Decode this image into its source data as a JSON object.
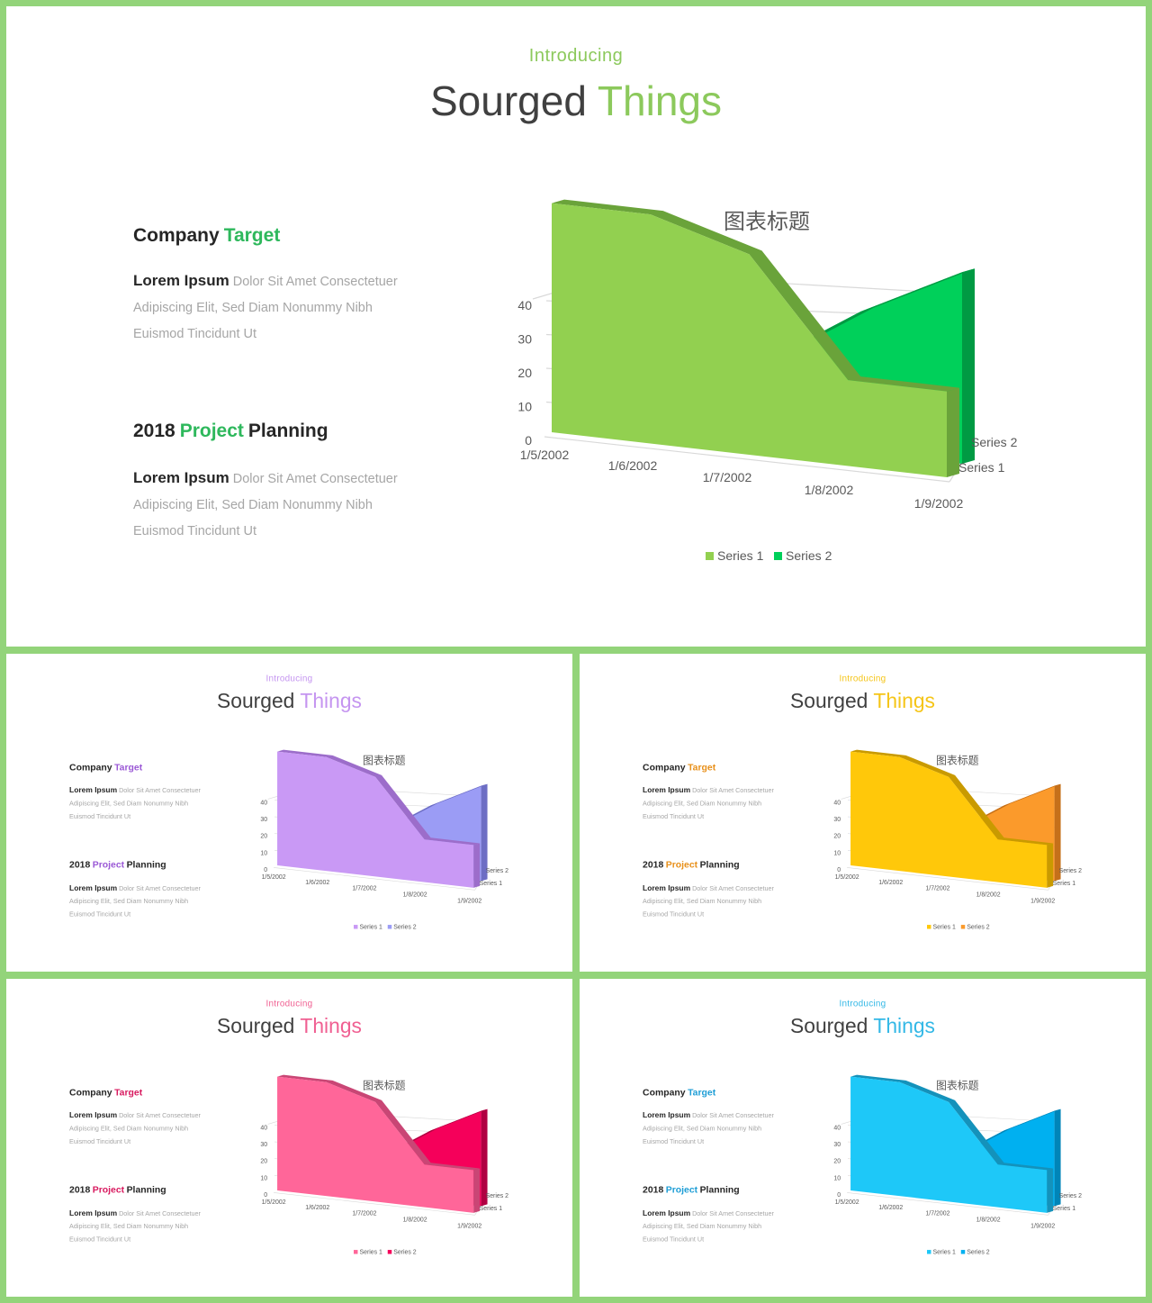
{
  "slides": [
    {
      "intro": "Introducing",
      "title_main": "Sourged",
      "title_accent": "Things",
      "sections": [
        {
          "heading_parts": [
            "Company",
            "Target"
          ],
          "accent_index": 1,
          "lead": "Lorem Ipsum",
          "body": "Dolor Sit Amet Consectetuer Adipiscing Elit, Sed Diam Nonummy Nibh Euismod Tincidunt Ut"
        },
        {
          "heading_parts": [
            "2018",
            "Project",
            "Planning"
          ],
          "accent_index": 1,
          "lead": "Lorem Ipsum",
          "body": "Dolor Sit Amet Consectetuer Adipiscing Elit, Sed Diam Nonummy Nibh Euismod Tincidunt Ut"
        }
      ],
      "colors": {
        "accent": "#8cc95c",
        "heading_accent": "#2eb85c",
        "series1": "#92d050",
        "series1_dark": "#6aa33a",
        "series2": "#00d05a",
        "series2_dark": "#009a43"
      }
    },
    {
      "intro": "Introducing",
      "title_main": "Sourged",
      "title_accent": "Things",
      "sections": [
        {
          "heading_parts": [
            "Company",
            "Target"
          ],
          "accent_index": 1,
          "lead": "Lorem Ipsum",
          "body": "Dolor Sit Amet Consectetuer Adipiscing Elit, Sed Diam Nonummy Nibh Euismod Tincidunt Ut"
        },
        {
          "heading_parts": [
            "2018",
            "Project",
            "Planning"
          ],
          "accent_index": 1,
          "lead": "Lorem Ipsum",
          "body": "Dolor Sit Amet Consectetuer Adipiscing Elit, Sed Diam Nonummy Nibh Euismod Tincidunt Ut"
        }
      ],
      "colors": {
        "accent": "#c595f0",
        "heading_accent": "#9b59d6",
        "series1": "#c999f5",
        "series1_dark": "#9c6dca",
        "series2": "#9b9cf5",
        "series2_dark": "#6d6ec4"
      }
    },
    {
      "intro": "Introducing",
      "title_main": "Sourged",
      "title_accent": "Things",
      "sections": [
        {
          "heading_parts": [
            "Company",
            "Target"
          ],
          "accent_index": 1,
          "lead": "Lorem Ipsum",
          "body": "Dolor Sit Amet Consectetuer Adipiscing Elit, Sed Diam Nonummy Nibh Euismod Tincidunt Ut"
        },
        {
          "heading_parts": [
            "2018",
            "Project",
            "Planning"
          ],
          "accent_index": 1,
          "lead": "Lorem Ipsum",
          "body": "Dolor Sit Amet Consectetuer Adipiscing Elit, Sed Diam Nonummy Nibh Euismod Tincidunt Ut"
        }
      ],
      "colors": {
        "accent": "#f5c518",
        "heading_accent": "#e8901a",
        "series1": "#ffc80a",
        "series1_dark": "#c99a00",
        "series2": "#fb9a2b",
        "series2_dark": "#c5701a"
      }
    },
    {
      "intro": "Introducing",
      "title_main": "Sourged",
      "title_accent": "Things",
      "sections": [
        {
          "heading_parts": [
            "Company",
            "Target"
          ],
          "accent_index": 1,
          "lead": "Lorem Ipsum",
          "body": "Dolor Sit Amet Consectetuer Adipiscing Elit, Sed Diam Nonummy Nibh Euismod Tincidunt Ut"
        },
        {
          "heading_parts": [
            "2018",
            "Project",
            "Planning"
          ],
          "accent_index": 1,
          "lead": "Lorem Ipsum",
          "body": "Dolor Sit Amet Consectetuer Adipiscing Elit, Sed Diam Nonummy Nibh Euismod Tincidunt Ut"
        }
      ],
      "colors": {
        "accent": "#f06092",
        "heading_accent": "#d81b60",
        "series1": "#ff6699",
        "series1_dark": "#c94675",
        "series2": "#f5005a",
        "series2_dark": "#b00042"
      }
    },
    {
      "intro": "Introducing",
      "title_main": "Sourged",
      "title_accent": "Things",
      "sections": [
        {
          "heading_parts": [
            "Company",
            "Target"
          ],
          "accent_index": 1,
          "lead": "Lorem Ipsum",
          "body": "Dolor Sit Amet Consectetuer Adipiscing Elit, Sed Diam Nonummy Nibh Euismod Tincidunt Ut"
        },
        {
          "heading_parts": [
            "2018",
            "Project",
            "Planning"
          ],
          "accent_index": 1,
          "lead": "Lorem Ipsum",
          "body": "Dolor Sit Amet Consectetuer Adipiscing Elit, Sed Diam Nonummy Nibh Euismod Tincidunt Ut"
        }
      ],
      "colors": {
        "accent": "#33b8e6",
        "heading_accent": "#1f9ed6",
        "series1": "#1ec8f8",
        "series1_dark": "#1492bb",
        "series2": "#00b0f0",
        "series2_dark": "#0085b8"
      }
    }
  ],
  "chart_data": {
    "type": "area",
    "title": "图表标题",
    "categories": [
      "1/5/2002",
      "1/6/2002",
      "1/7/2002",
      "1/8/2002",
      "1/9/2002"
    ],
    "series": [
      {
        "name": "Series 1",
        "values": [
          32,
          32,
          28,
          12,
          12
        ]
      },
      {
        "name": "Series 2",
        "values": [
          12,
          12,
          12,
          21,
          28
        ]
      }
    ],
    "yticks": [
      0,
      10,
      20,
      30,
      40
    ],
    "ylim": [
      0,
      40
    ],
    "depth_labels": [
      "Series 2",
      "Series 1"
    ],
    "legend": [
      "Series 1",
      "Series 2"
    ],
    "legend_position": "bottom",
    "grid": true
  }
}
